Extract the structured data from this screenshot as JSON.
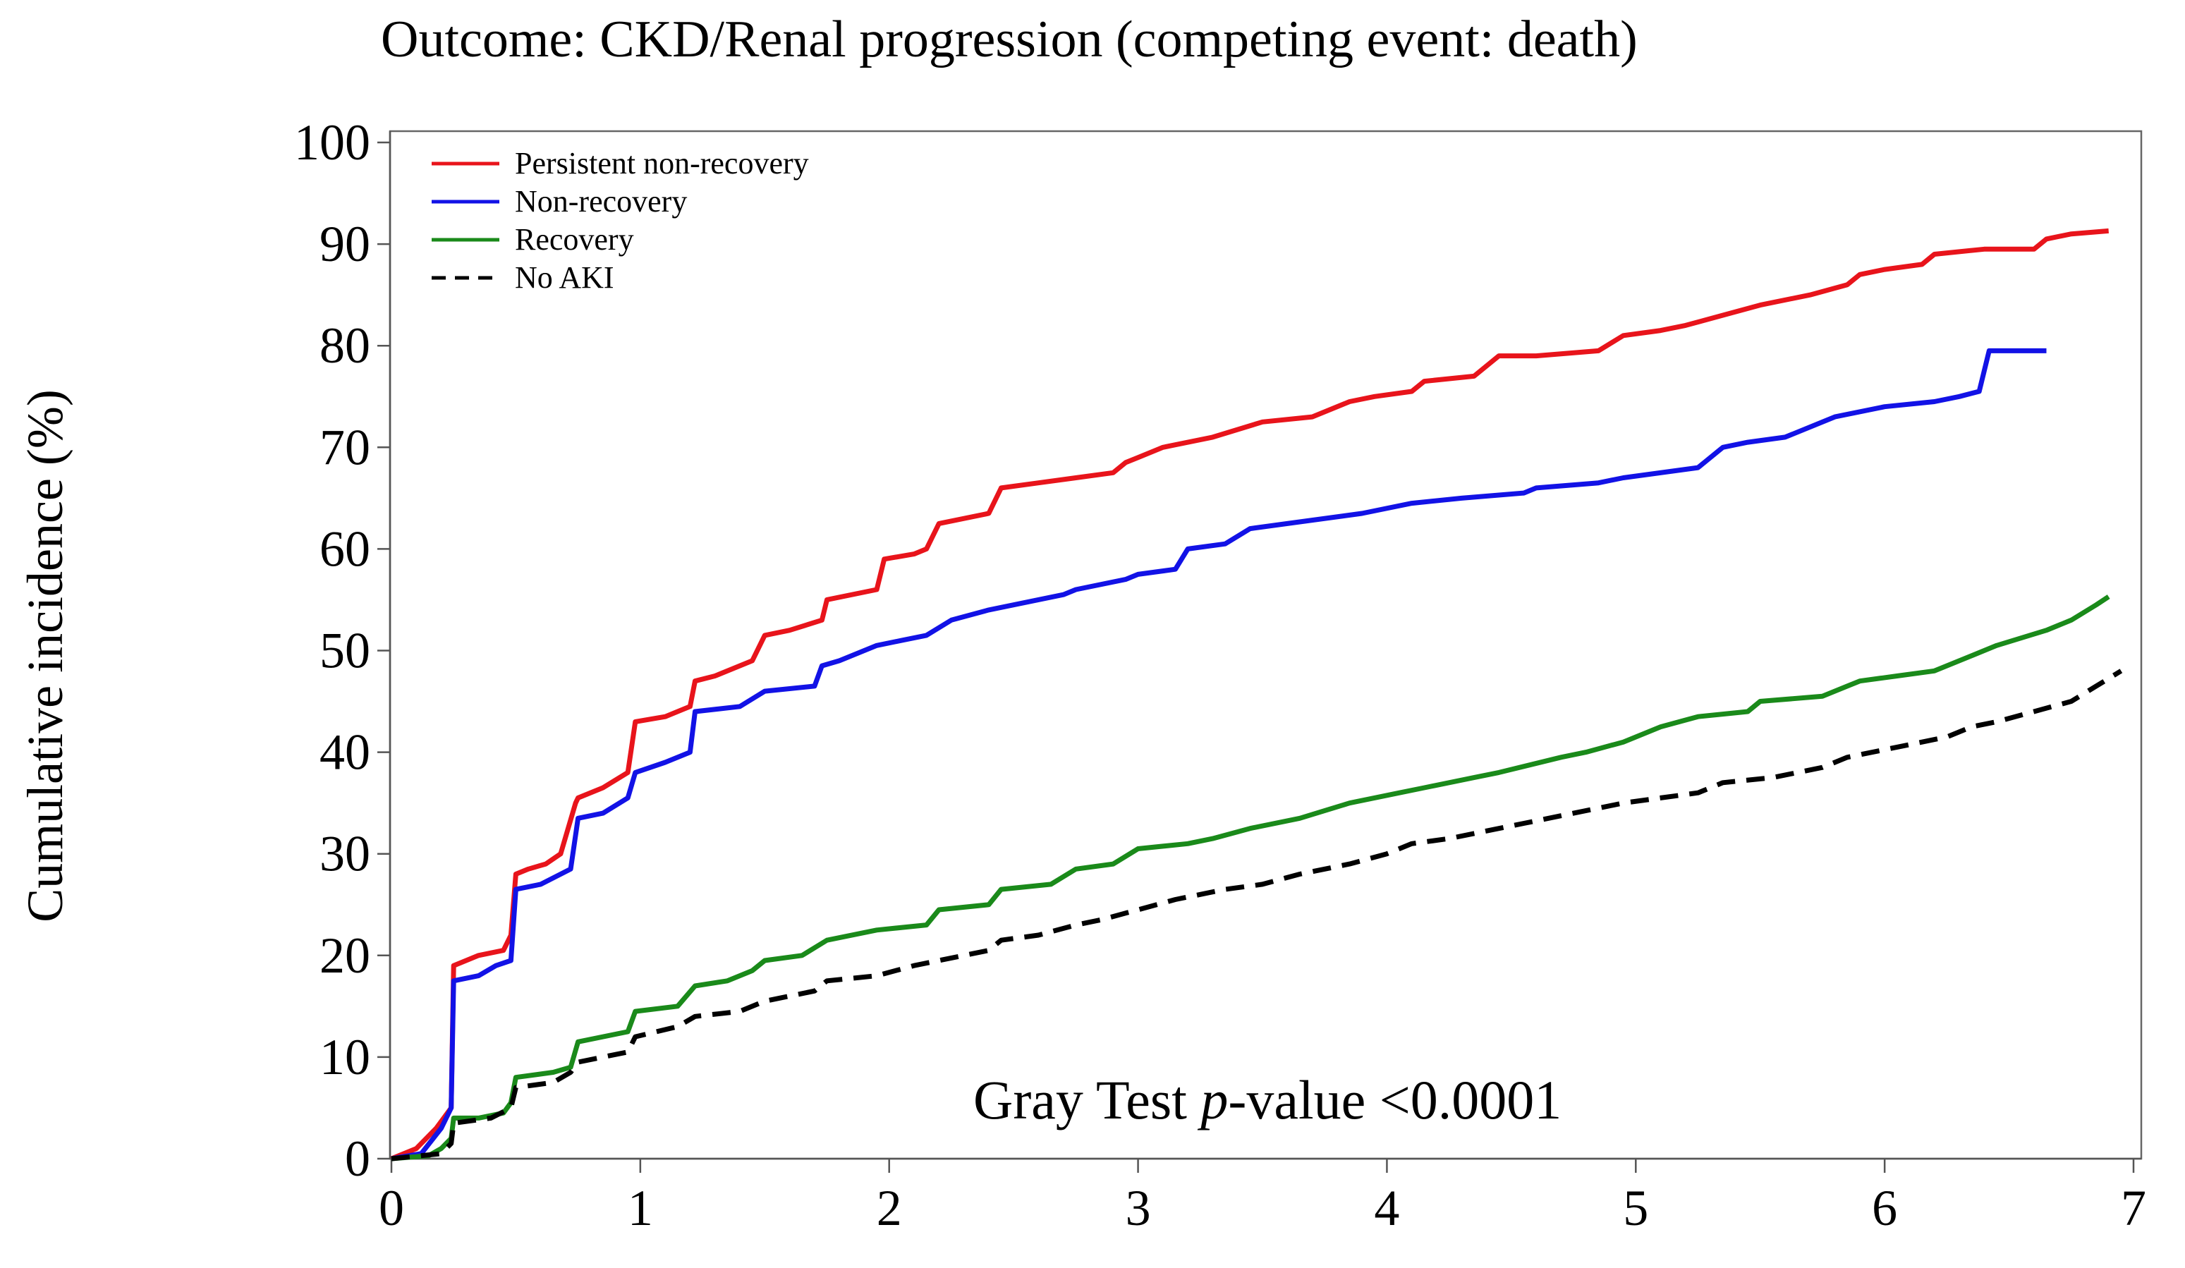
{
  "chart_data": {
    "type": "line",
    "title": "Outcome: CKD/Renal progression (competing event: death)",
    "ylabel": "Cumulative incidence (%)",
    "xlabel": "",
    "xlim": [
      0,
      7
    ],
    "ylim": [
      0,
      100
    ],
    "xticks": [
      0,
      1,
      2,
      3,
      4,
      5,
      6,
      7
    ],
    "yticks": [
      0,
      10,
      20,
      30,
      40,
      50,
      60,
      70,
      80,
      90,
      100
    ],
    "grid": false,
    "legend_position": "top-left",
    "annotation": {
      "prefix": "Gray Test ",
      "italic": "p",
      "suffix": "-value <0.0001"
    },
    "series": [
      {
        "name": "Persistent non-recovery",
        "color": "#e8141b",
        "dash": "solid",
        "x": [
          0,
          0.1,
          0.18,
          0.24,
          0.25,
          0.3,
          0.35,
          0.45,
          0.48,
          0.5,
          0.55,
          0.62,
          0.68,
          0.74,
          0.75,
          0.85,
          0.95,
          0.98,
          1.1,
          1.2,
          1.22,
          1.3,
          1.45,
          1.5,
          1.6,
          1.73,
          1.75,
          1.95,
          1.98,
          2.1,
          2.15,
          2.2,
          2.4,
          2.45,
          2.6,
          2.75,
          2.9,
          2.95,
          3.0,
          3.1,
          3.3,
          3.5,
          3.7,
          3.85,
          3.95,
          4.1,
          4.15,
          4.35,
          4.45,
          4.6,
          4.85,
          4.95,
          5.1,
          5.2,
          5.35,
          5.5,
          5.7,
          5.85,
          5.9,
          6.0,
          6.15,
          6.2,
          6.4,
          6.6,
          6.65,
          6.75,
          6.9
        ],
        "y": [
          0,
          1,
          3,
          5,
          19,
          19.5,
          20,
          20.5,
          22,
          28,
          28.5,
          29,
          30,
          35,
          35.5,
          36.5,
          38,
          43,
          43.5,
          44.5,
          47,
          47.5,
          49,
          51.5,
          52,
          53,
          55,
          56,
          59,
          59.5,
          60,
          62.5,
          63.5,
          66,
          66.5,
          67,
          67.5,
          68.5,
          69,
          70,
          71,
          72.5,
          73,
          74.5,
          75,
          75.5,
          76.5,
          77,
          79,
          79,
          79.5,
          81,
          81.5,
          82,
          83,
          84,
          85,
          86,
          87,
          87.5,
          88,
          89,
          89.5,
          89.5,
          90.5,
          91,
          91.3
        ]
      },
      {
        "name": "Non-recovery",
        "color": "#1212e6",
        "dash": "solid",
        "x": [
          0,
          0.12,
          0.2,
          0.24,
          0.25,
          0.35,
          0.42,
          0.48,
          0.5,
          0.6,
          0.68,
          0.72,
          0.75,
          0.85,
          0.95,
          0.98,
          1.1,
          1.2,
          1.22,
          1.4,
          1.5,
          1.7,
          1.73,
          1.8,
          1.95,
          2.05,
          2.15,
          2.25,
          2.4,
          2.6,
          2.7,
          2.75,
          2.95,
          3.0,
          3.15,
          3.2,
          3.35,
          3.45,
          3.6,
          3.9,
          4.1,
          4.3,
          4.55,
          4.6,
          4.85,
          4.95,
          5.25,
          5.35,
          5.45,
          5.6,
          5.8,
          6.0,
          6.2,
          6.3,
          6.38,
          6.42,
          6.65
        ],
        "y": [
          0,
          0.5,
          3,
          5,
          17.5,
          18,
          19,
          19.5,
          26.5,
          27,
          28,
          28.5,
          33.5,
          34,
          35.5,
          38,
          39,
          40,
          44,
          44.5,
          46,
          46.5,
          48.5,
          49,
          50.5,
          51,
          51.5,
          53,
          54,
          55,
          55.5,
          56,
          57,
          57.5,
          58,
          60,
          60.5,
          62,
          62.5,
          63.5,
          64.5,
          65,
          65.5,
          66,
          66.5,
          67,
          68,
          70,
          70.5,
          71,
          73,
          74,
          74.5,
          75,
          75.5,
          79.5,
          79.5
        ]
      },
      {
        "name": "Recovery",
        "color": "#1a8a1a",
        "dash": "solid",
        "x": [
          0,
          0.15,
          0.2,
          0.24,
          0.25,
          0.35,
          0.45,
          0.48,
          0.5,
          0.65,
          0.72,
          0.75,
          0.95,
          0.98,
          1.15,
          1.22,
          1.35,
          1.45,
          1.5,
          1.65,
          1.75,
          1.95,
          2.15,
          2.2,
          2.4,
          2.45,
          2.65,
          2.75,
          2.9,
          3.0,
          3.2,
          3.3,
          3.45,
          3.65,
          3.85,
          4.05,
          4.15,
          4.35,
          4.45,
          4.7,
          4.8,
          4.95,
          5.1,
          5.25,
          5.45,
          5.5,
          5.75,
          5.85,
          5.9,
          6.05,
          6.2,
          6.35,
          6.45,
          6.65,
          6.75,
          6.85,
          6.9
        ],
        "y": [
          0,
          0.3,
          1,
          2,
          4,
          4,
          4.5,
          5.5,
          8,
          8.5,
          9,
          11.5,
          12.5,
          14.5,
          15,
          17,
          17.5,
          18.5,
          19.5,
          20,
          21.5,
          22.5,
          23,
          24.5,
          25,
          26.5,
          27,
          28.5,
          29,
          30.5,
          31,
          31.5,
          32.5,
          33.5,
          35,
          36,
          36.5,
          37.5,
          38,
          39.5,
          40,
          41,
          42.5,
          43.5,
          44,
          45,
          45.5,
          46.5,
          47,
          47.5,
          48,
          49.5,
          50.5,
          52,
          53,
          54.5,
          55.3
        ]
      },
      {
        "name": "No AKI",
        "color": "#000000",
        "dash": "dashed",
        "x": [
          0,
          0.2,
          0.24,
          0.25,
          0.4,
          0.48,
          0.5,
          0.65,
          0.72,
          0.75,
          0.95,
          0.98,
          1.15,
          1.22,
          1.4,
          1.5,
          1.7,
          1.75,
          1.95,
          2.1,
          2.2,
          2.4,
          2.45,
          2.6,
          2.75,
          2.85,
          3.0,
          3.15,
          3.35,
          3.5,
          3.65,
          3.85,
          4.0,
          4.1,
          4.25,
          4.45,
          4.55,
          4.75,
          4.95,
          5.1,
          5.25,
          5.35,
          5.55,
          5.75,
          5.85,
          6.05,
          6.25,
          6.35,
          6.45,
          6.6,
          6.75,
          6.85,
          6.95
        ],
        "y": [
          0,
          0.5,
          1.5,
          3.5,
          4,
          5,
          7,
          7.5,
          8.5,
          9.5,
          10.5,
          12,
          13,
          14,
          14.5,
          15.5,
          16.5,
          17.5,
          18,
          19,
          19.5,
          20.5,
          21.5,
          22,
          23,
          23.5,
          24.5,
          25.5,
          26.5,
          27,
          28,
          29,
          30,
          31,
          31.5,
          32.5,
          33,
          34,
          35,
          35.5,
          36,
          37,
          37.5,
          38.5,
          39.5,
          40.5,
          41.5,
          42.5,
          43,
          44,
          45,
          46.5,
          48
        ]
      }
    ]
  }
}
